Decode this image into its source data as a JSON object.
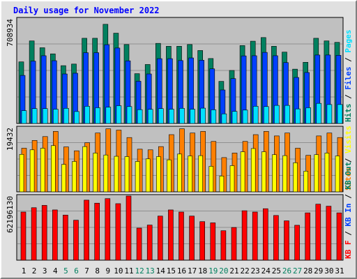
{
  "title": "Daily usage for November 2022",
  "colors": {
    "hits": "#00805f",
    "files": "#0040ff",
    "pages": "#00e0ff",
    "visits": "#ffff00",
    "sites": "#ff8000",
    "kbytes": "#ff0000",
    "weekend_day": "#00805f",
    "weekday_day": "#000000",
    "panel_bg": "#c0c0c0",
    "title": "#0000ff"
  },
  "chart_data": [
    {
      "type": "bar",
      "name": "hits-files-pages",
      "categories": [
        "1",
        "2",
        "3",
        "4",
        "5",
        "6",
        "7",
        "8",
        "9",
        "10",
        "11",
        "12",
        "13",
        "14",
        "15",
        "16",
        "17",
        "18",
        "19",
        "20",
        "21",
        "22",
        "23",
        "24",
        "25",
        "26",
        "27",
        "28",
        "29",
        "30",
        "31"
      ],
      "ymax_label": "708934",
      "ylim": [
        0,
        708934
      ],
      "right_labels": [
        {
          "text": "Hits",
          "color": "#00805f"
        },
        {
          "text": " / ",
          "color": "#000000"
        },
        {
          "text": "Files",
          "color": "#0040ff"
        },
        {
          "text": " / ",
          "color": "#000000"
        },
        {
          "text": "Pages",
          "color": "#00e0ff"
        }
      ],
      "series": [
        {
          "name": "Hits",
          "values": [
            423000,
            567000,
            520000,
            478000,
            397000,
            408000,
            585000,
            585000,
            681000,
            620000,
            542000,
            342000,
            405000,
            550000,
            530000,
            530000,
            542000,
            501000,
            446000,
            289000,
            364000,
            535000,
            565000,
            590000,
            530000,
            490000,
            373000,
            420000,
            585000,
            567000,
            557000
          ]
        },
        {
          "name": "Files",
          "values": [
            330000,
            428000,
            465000,
            431000,
            340000,
            345000,
            486000,
            486000,
            541000,
            518000,
            430000,
            290000,
            340000,
            445000,
            445000,
            432000,
            450000,
            434000,
            375000,
            230000,
            308000,
            464000,
            465000,
            488000,
            465000,
            418000,
            316000,
            350000,
            470000,
            470000,
            468000
          ]
        },
        {
          "name": "Pages",
          "values": [
            88000,
            102000,
            102000,
            98000,
            104000,
            82000,
            118000,
            108000,
            112000,
            122000,
            116000,
            95000,
            97000,
            102000,
            98000,
            104000,
            98000,
            105000,
            94000,
            66000,
            83000,
            92000,
            118000,
            116000,
            124000,
            124000,
            100000,
            108000,
            138000,
            130000,
            130000
          ]
        }
      ]
    },
    {
      "type": "bar",
      "name": "visits-sites",
      "categories": [
        "1",
        "2",
        "3",
        "4",
        "5",
        "6",
        "7",
        "8",
        "9",
        "10",
        "11",
        "12",
        "13",
        "14",
        "15",
        "16",
        "17",
        "18",
        "19",
        "20",
        "21",
        "22",
        "23",
        "24",
        "25",
        "26",
        "27",
        "28",
        "29",
        "30",
        "31"
      ],
      "ymax_label": "19432",
      "ylim": [
        0,
        19432
      ],
      "right_labels": [
        {
          "text": "Sites",
          "color": "#ff8000"
        },
        {
          "text": " / ",
          "color": "#000000"
        },
        {
          "text": "Visits",
          "color": "#ffff00"
        }
      ],
      "series": [
        {
          "name": "Sites",
          "values": [
            13500,
            15900,
            17100,
            18700,
            13900,
            12700,
            15200,
            18200,
            19500,
            19100,
            16800,
            13200,
            13000,
            14000,
            17700,
            19500,
            18200,
            18700,
            15600,
            10600,
            12000,
            15600,
            17700,
            18700,
            17300,
            18200,
            13500,
            11300,
            17300,
            18200,
            16800
          ]
        },
        {
          "name": "Visits",
          "values": [
            11600,
            13000,
            13500,
            14300,
            8500,
            9400,
            14000,
            12000,
            11400,
            11000,
            10900,
            9400,
            10200,
            10900,
            9900,
            11700,
            11100,
            11200,
            7900,
            4900,
            8100,
            12400,
            13400,
            12400,
            11500,
            11200,
            9000,
            6400,
            11500,
            12000,
            11100
          ]
        }
      ]
    },
    {
      "type": "bar",
      "name": "kbytes",
      "categories": [
        "1",
        "2",
        "3",
        "4",
        "5",
        "6",
        "7",
        "8",
        "9",
        "10",
        "11",
        "12",
        "13",
        "14",
        "15",
        "16",
        "17",
        "18",
        "19",
        "20",
        "21",
        "22",
        "23",
        "24",
        "25",
        "26",
        "27",
        "28",
        "29",
        "30",
        "31"
      ],
      "ymax_label": "62196130",
      "ylim": [
        0,
        62196130
      ],
      "right_labels": [
        {
          "text": "KB F",
          "color": "#ff0000"
        },
        {
          "text": " / ",
          "color": "#000000"
        },
        {
          "text": "KB In",
          "color": "#0040ff"
        },
        {
          "text": " / ",
          "color": "#000000"
        },
        {
          "text": "KB Out",
          "color": "#00805f"
        }
      ],
      "series": [
        {
          "name": "KB F",
          "values": [
            47700,
            52000,
            54300,
            49800,
            44700,
            39600,
            59500,
            56500,
            61000,
            56000,
            63600,
            31800,
            34800,
            43700,
            49800,
            47700,
            43700,
            38200,
            37000,
            29200,
            32400,
            49000,
            47700,
            51000,
            44300,
            39000,
            34600,
            46900,
            55500,
            53500,
            46900
          ]
        }
      ]
    }
  ],
  "x_axis": {
    "days": [
      "1",
      "2",
      "3",
      "4",
      "5",
      "6",
      "7",
      "8",
      "9",
      "10",
      "11",
      "12",
      "13",
      "14",
      "15",
      "16",
      "17",
      "18",
      "19",
      "20",
      "21",
      "22",
      "23",
      "24",
      "25",
      "26",
      "27",
      "28",
      "29",
      "30",
      "31"
    ],
    "weekend_days": [
      "5",
      "6",
      "12",
      "13",
      "19",
      "20",
      "26",
      "27"
    ]
  }
}
